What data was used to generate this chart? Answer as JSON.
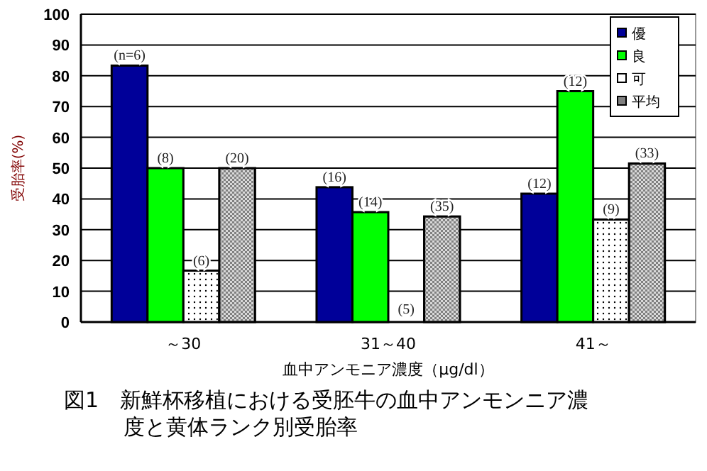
{
  "chart_data": {
    "type": "bar",
    "title": "図1　新鮮杯移植における受胚牛の血中アンモンニア濃度と黄体ランク別受胎率",
    "xlabel": "血中アンモニア濃度（μg/dl）",
    "ylabel": "受胎率(%)",
    "categories": [
      "～30",
      "31～40",
      "41～"
    ],
    "series": [
      {
        "name": "優",
        "color": "#000099",
        "values": [
          83.3,
          43.8,
          41.7
        ]
      },
      {
        "name": "良",
        "color": "#00ff00",
        "values": [
          50,
          35.7,
          75
        ]
      },
      {
        "name": "可",
        "color": "#ffffff",
        "values": [
          16.7,
          0,
          33.3
        ]
      },
      {
        "name": "平均",
        "color": "#808080",
        "values": [
          50,
          34.3,
          51.5
        ]
      }
    ],
    "annotations": [
      "(n=6)",
      "(8)",
      "(6)",
      "(20)",
      "(16)",
      "(14)",
      "(5)",
      "(35)",
      "(12)",
      "(12)",
      "(9)",
      "(33)"
    ],
    "ylim": [
      0,
      100
    ],
    "yticks": [
      0,
      10,
      20,
      30,
      40,
      50,
      60,
      70,
      80,
      90,
      100
    ],
    "grid": "y",
    "legend": "top right"
  }
}
